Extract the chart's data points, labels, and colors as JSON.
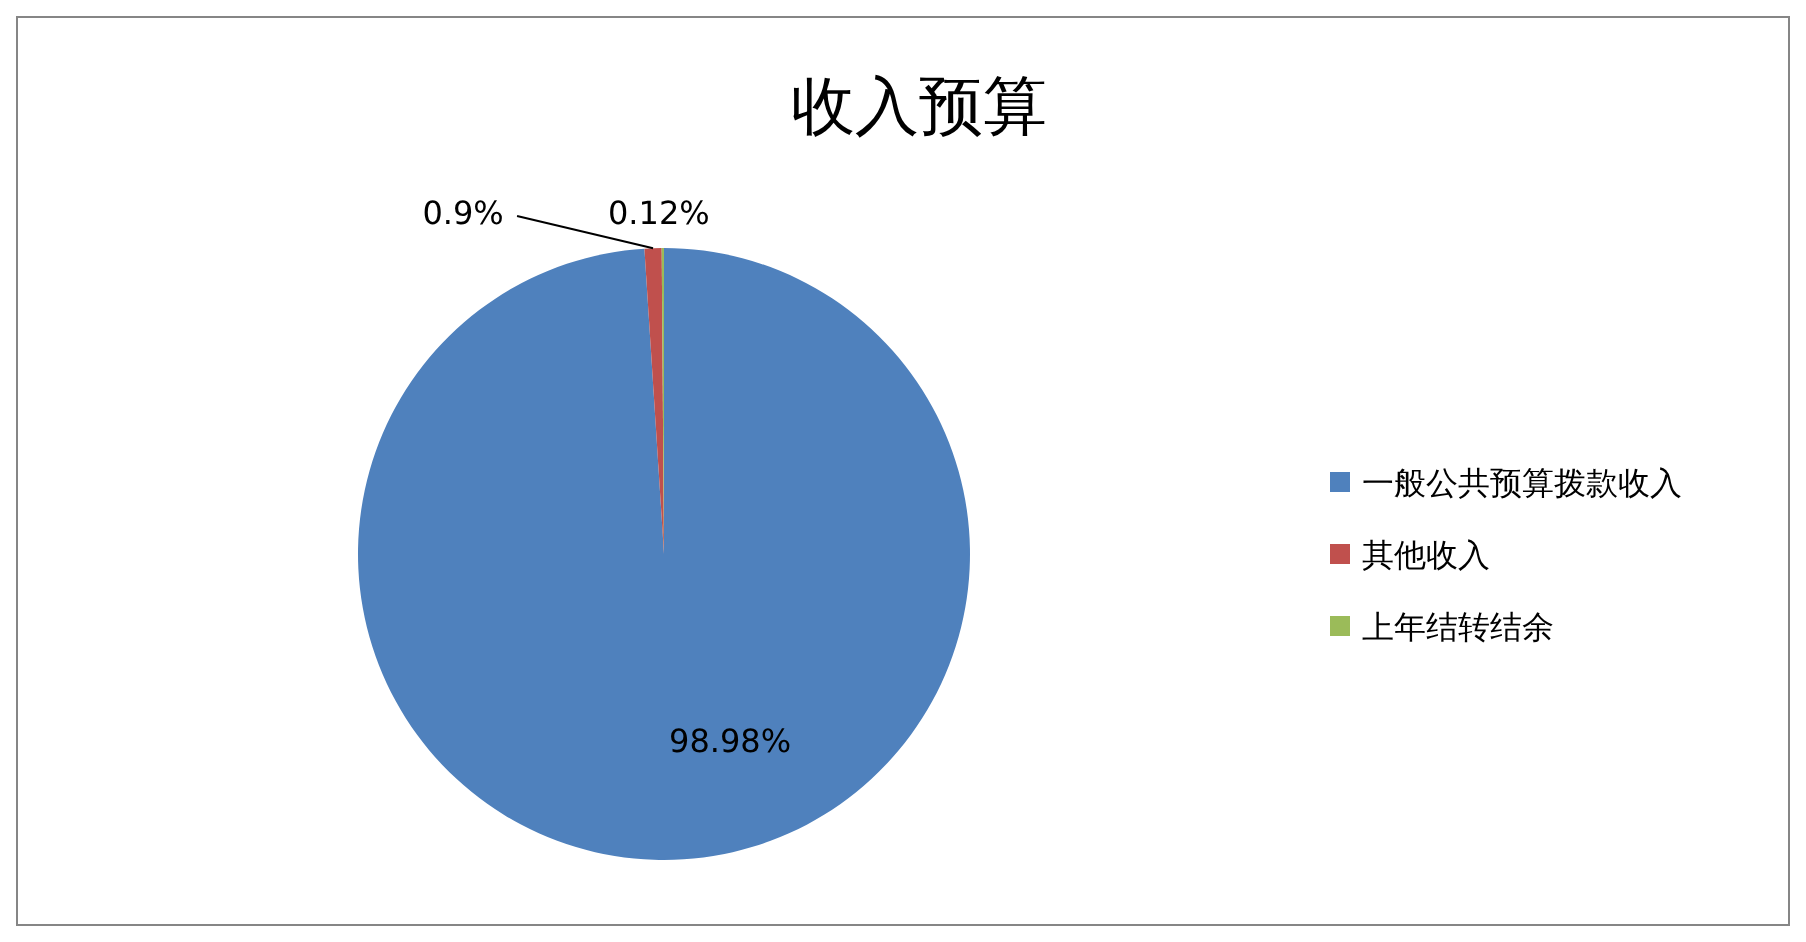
{
  "chart_data": {
    "type": "pie",
    "title": "收入预算",
    "categories": [
      "一般公共预算拨款收入",
      "其他收入",
      "上年结转结余"
    ],
    "values": [
      98.98,
      0.9,
      0.12
    ],
    "colors": [
      "#4f81bd",
      "#c0504d",
      "#9bbb59"
    ],
    "value_labels": [
      "98.98%",
      "0.9%",
      "0.12%"
    ],
    "legend": "right"
  }
}
